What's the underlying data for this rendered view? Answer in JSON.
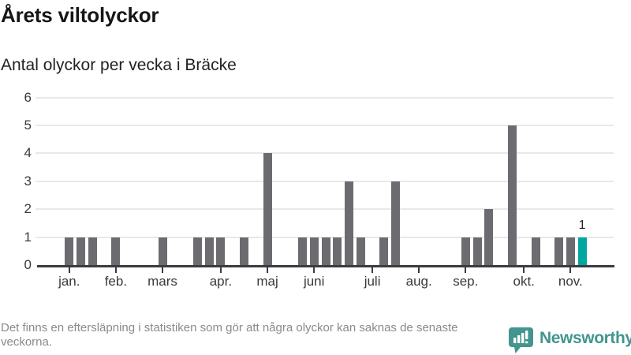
{
  "header": {
    "title": "Årets viltolyckor",
    "subtitle": "Antal olyckor per vecka i Bräcke"
  },
  "chart_data": {
    "type": "bar",
    "title": "Årets viltolyckor",
    "subtitle": "Antal olyckor per vecka i Bräcke",
    "x_unit": "vecka",
    "values": [
      1,
      1,
      1,
      0,
      1,
      0,
      0,
      0,
      1,
      0,
      0,
      1,
      1,
      1,
      0,
      1,
      0,
      4,
      0,
      0,
      1,
      1,
      1,
      1,
      3,
      1,
      0,
      1,
      3,
      0,
      0,
      0,
      0,
      0,
      1,
      1,
      2,
      0,
      5,
      0,
      1,
      0,
      1,
      1,
      1
    ],
    "highlight_last_index": 44,
    "highlight_value_label": "1",
    "month_ticks": [
      {
        "label": "jan.",
        "week": 0
      },
      {
        "label": "feb.",
        "week": 4
      },
      {
        "label": "mars",
        "week": 8
      },
      {
        "label": "apr.",
        "week": 13
      },
      {
        "label": "maj",
        "week": 17
      },
      {
        "label": "juni",
        "week": 21
      },
      {
        "label": "juli",
        "week": 26
      },
      {
        "label": "aug.",
        "week": 30
      },
      {
        "label": "sep.",
        "week": 34
      },
      {
        "label": "okt.",
        "week": 39
      },
      {
        "label": "nov.",
        "week": 43
      }
    ],
    "yticks": [
      0,
      1,
      2,
      3,
      4,
      5,
      6
    ],
    "ylim": [
      0,
      6
    ],
    "grid": true,
    "colors": {
      "bar": "#6b6b70",
      "highlight": "#00a79e",
      "axis": "#3b3b40",
      "gridline": "#e8e8e8"
    }
  },
  "footer": {
    "note": "Det finns en eftersläpning i statistiken som gör att några olyckor kan saknas de senaste veckorna.",
    "brand": "Newsworthy"
  }
}
